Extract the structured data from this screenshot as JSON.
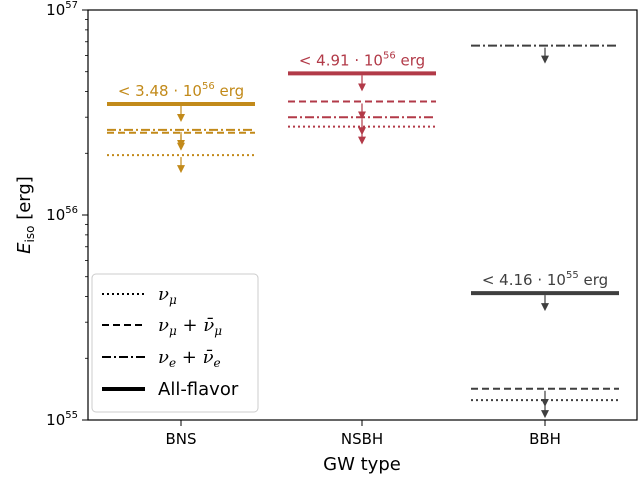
{
  "chart_data": {
    "type": "scatter",
    "title": "",
    "xlabel": "GW type",
    "ylabel_main": "E",
    "ylabel_sub": "iso",
    "ylabel_unit": "[erg]",
    "yscale": "log",
    "ylim": [
      1e+55,
      1e+57
    ],
    "ytick_labels": [
      {
        "base": "10",
        "exp": "55",
        "value": 1e+55
      },
      {
        "base": "10",
        "exp": "56",
        "value": 1e+56
      },
      {
        "base": "10",
        "exp": "57",
        "value": 1e+57
      }
    ],
    "categories": [
      "BNS",
      "NSBH",
      "BBH"
    ],
    "category_colors": [
      "#c28a1a",
      "#b23a48",
      "#3f3f3f"
    ],
    "upper_limits": [
      {
        "category": "BNS",
        "all_flavor": 3.48e+56,
        "nue_nuebar": 2.6e+56,
        "numu_numubar": 2.52e+56,
        "numu": 1.96e+56,
        "label": {
          "prefix": "< 3.48 · 10",
          "exp": "56",
          "suffix": " erg"
        }
      },
      {
        "category": "NSBH",
        "all_flavor": 4.91e+56,
        "nue_nuebar": 3e+56,
        "numu_numubar": 3.58e+56,
        "numu": 2.7e+56,
        "label": {
          "prefix": "< 4.91 · 10",
          "exp": "56",
          "suffix": " erg"
        }
      },
      {
        "category": "BBH",
        "all_flavor": 4.16e+55,
        "nue_nuebar": 6.7e+56,
        "numu_numubar": 1.42e+55,
        "numu": 1.25e+55,
        "label": {
          "prefix": "< 4.16 · 10",
          "exp": "55",
          "suffix": " erg"
        }
      }
    ],
    "legend": {
      "placement": "lower-left",
      "entries": [
        {
          "style": "dotted",
          "label": "ν_μ"
        },
        {
          "style": "dashed",
          "label": "ν_μ + ν̄_μ"
        },
        {
          "style": "dashdot",
          "label": "ν_e + ν̄_e"
        },
        {
          "style": "solid",
          "label": "All-flavor"
        }
      ]
    }
  }
}
